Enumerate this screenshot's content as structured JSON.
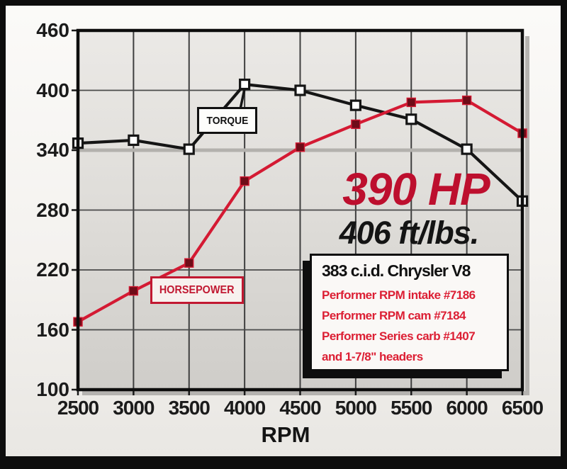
{
  "chart_data": {
    "type": "line",
    "title": "",
    "xlabel": "RPM",
    "ylabel": "",
    "x": [
      2500,
      3000,
      3500,
      4000,
      4500,
      5000,
      5500,
      6000,
      6500
    ],
    "series": [
      {
        "name": "TORQUE",
        "values": [
          347,
          350,
          341,
          406,
          400,
          385,
          371,
          341,
          289
        ],
        "line_color": "#151515",
        "marker": "open-square",
        "marker_fill": "#ffffff"
      },
      {
        "name": "HORSEPOWER",
        "values": [
          168,
          199,
          227,
          309,
          343,
          366,
          388,
          390,
          357
        ],
        "line_color": "#d41a33",
        "marker": "filled-square",
        "marker_fill": "#6f0c18"
      }
    ],
    "xlim": [
      2500,
      6500
    ],
    "ylim": [
      100,
      460
    ],
    "xticks": [
      2500,
      3000,
      3500,
      4000,
      4500,
      5000,
      5500,
      6000,
      6500
    ],
    "yticks": [
      460,
      400,
      340,
      280,
      220,
      160,
      100
    ],
    "grid": true,
    "highlight_line_value": 340,
    "highlight_line_color": "#b3b1ad",
    "legend_position": "inline-callouts"
  },
  "callouts": {
    "peak_hp": "390 HP",
    "peak_hp_color": "#bd0f2e",
    "peak_torque": "406 ft/lbs.",
    "torque_tag": "TORQUE",
    "horsepower_tag": "HORSEPOWER",
    "horsepower_tag_color": "#c11831"
  },
  "spec_box": {
    "title": "383 c.i.d. Chrysler V8",
    "lines": [
      "Performer RPM intake #7186",
      "Performer RPM cam #7184",
      "Performer Series carb #1407",
      "and 1-7/8\" headers"
    ],
    "line_color": "#dc1f34"
  }
}
